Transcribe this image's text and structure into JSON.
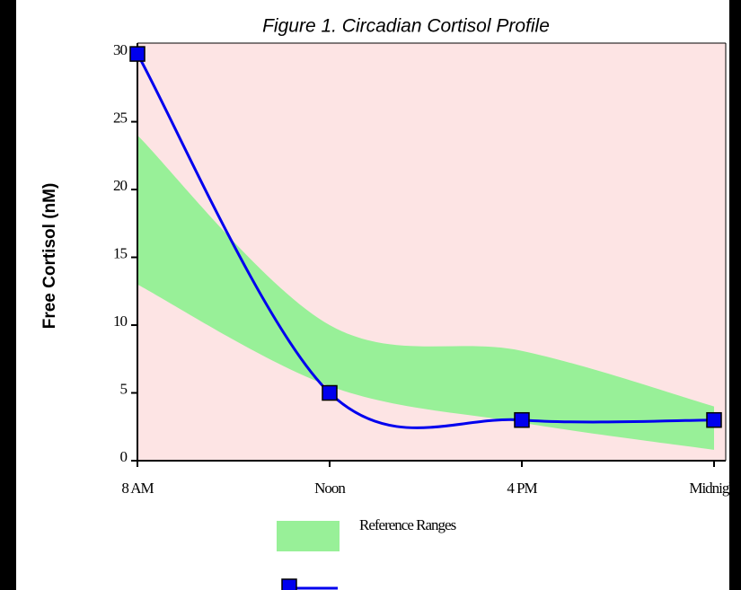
{
  "chart_data": {
    "type": "line",
    "title": "Figure 1.  Circadian Cortisol Profile",
    "y_label": "Free Cortisol (nM)",
    "categories": [
      "8 AM",
      "Noon",
      "4 PM",
      "Midnight"
    ],
    "series": [
      {
        "color": "#0000ee",
        "values": [
          30,
          5,
          3,
          3
        ]
      }
    ],
    "band": {
      "name": "Reference Ranges",
      "color": "#98f098",
      "lower": [
        13,
        5.5,
        2.8,
        0.8
      ],
      "upper": [
        24,
        10,
        8.1,
        4
      ]
    },
    "ylim": [
      0,
      30.8
    ],
    "yticks": [
      0,
      5,
      10,
      15,
      20,
      25,
      30
    ],
    "background": "#fde4e4"
  }
}
